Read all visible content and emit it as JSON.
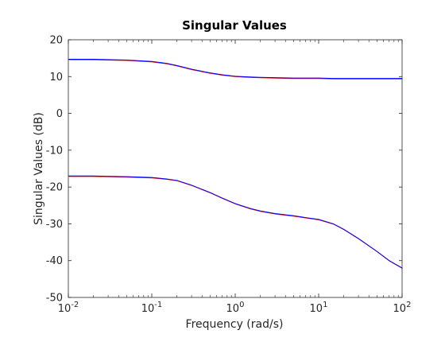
{
  "chart_data": {
    "type": "line",
    "title": "Singular Values",
    "xlabel": "Frequency (rad/s)",
    "ylabel": "Singular Values (dB)",
    "xscale": "log",
    "xlim": [
      0.01,
      100
    ],
    "ylim": [
      -50,
      20
    ],
    "grid": false,
    "legend": "none",
    "x_ticks": [
      {
        "value": 0.01,
        "base": "10",
        "exp": "-2"
      },
      {
        "value": 0.1,
        "base": "10",
        "exp": "-1"
      },
      {
        "value": 1,
        "base": "10",
        "exp": "0"
      },
      {
        "value": 10,
        "base": "10",
        "exp": "1"
      },
      {
        "value": 100,
        "base": "10",
        "exp": "2"
      }
    ],
    "y_ticks": [
      -50,
      -40,
      -30,
      -20,
      -10,
      0,
      10,
      20
    ],
    "colors": {
      "primary": "#0000ff",
      "secondary": "#ff0000",
      "axes": "#262626"
    },
    "x": [
      0.01,
      0.02,
      0.05,
      0.1,
      0.15,
      0.2,
      0.3,
      0.5,
      0.7,
      1,
      1.5,
      2,
      3,
      5,
      7,
      10,
      15,
      20,
      30,
      50,
      70,
      100
    ],
    "series": [
      {
        "color": "#0000ff",
        "values": [
          14.7,
          14.7,
          14.5,
          14.1,
          13.6,
          13.0,
          12.0,
          11.0,
          10.5,
          10.1,
          9.9,
          9.8,
          9.7,
          9.6,
          9.6,
          9.6,
          9.5,
          9.5,
          9.5,
          9.5,
          9.5,
          9.5
        ]
      },
      {
        "color": "#0000ff",
        "values": [
          -17.0,
          -17.0,
          -17.2,
          -17.4,
          -17.8,
          -18.2,
          -19.5,
          -21.5,
          -23.0,
          -24.5,
          -25.8,
          -26.5,
          -27.2,
          -27.8,
          -28.3,
          -28.8,
          -30.0,
          -31.5,
          -34.0,
          -37.5,
          -40.0,
          -42.0
        ]
      }
    ]
  }
}
